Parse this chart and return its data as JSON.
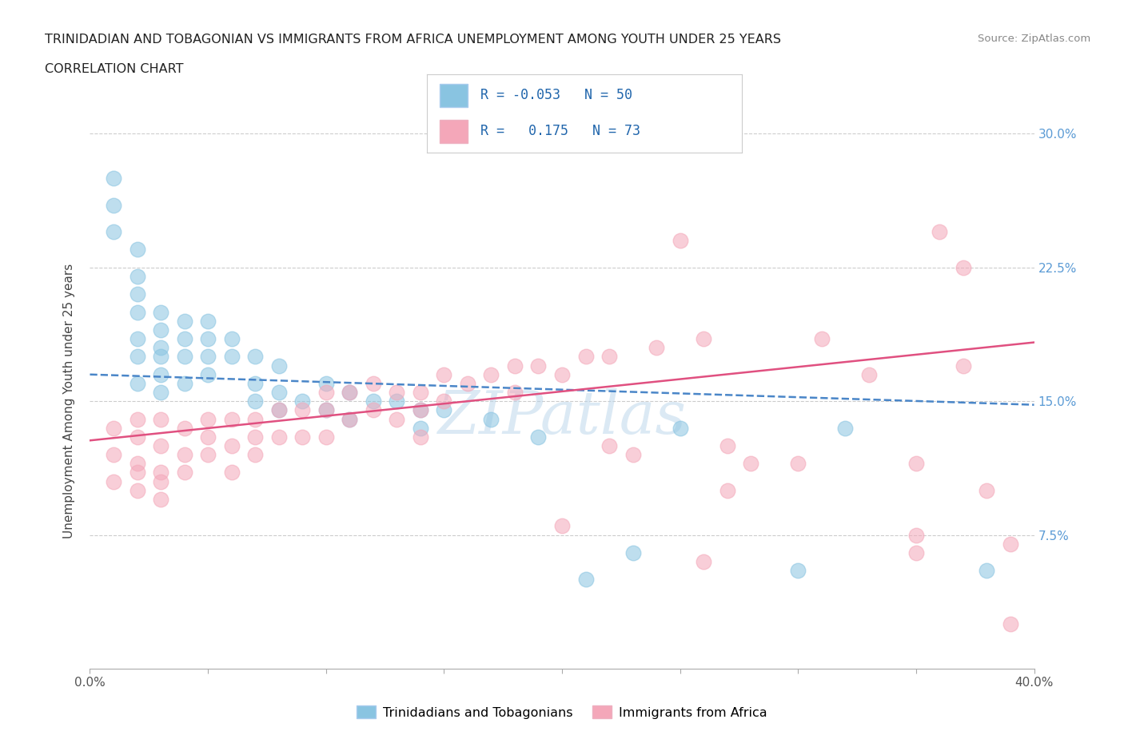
{
  "title_line1": "TRINIDADIAN AND TOBAGONIAN VS IMMIGRANTS FROM AFRICA UNEMPLOYMENT AMONG YOUTH UNDER 25 YEARS",
  "title_line2": "CORRELATION CHART",
  "source_text": "Source: ZipAtlas.com",
  "ylabel_label": "Unemployment Among Youth under 25 years",
  "xlim": [
    0.0,
    0.4
  ],
  "ylim": [
    0.0,
    0.3
  ],
  "yticks": [
    0.075,
    0.15,
    0.225,
    0.3
  ],
  "ytick_labels": [
    "7.5%",
    "15.0%",
    "22.5%",
    "30.0%"
  ],
  "xticks": [
    0.0,
    0.05,
    0.1,
    0.15,
    0.2,
    0.25,
    0.3,
    0.35,
    0.4
  ],
  "legend_R1": "-0.053",
  "legend_N1": "50",
  "legend_R2": "0.175",
  "legend_N2": "73",
  "legend_label1": "Trinidadians and Tobagonians",
  "legend_label2": "Immigrants from Africa",
  "color_blue": "#89c4e1",
  "color_pink": "#f4a7b9",
  "color_blue_line": "#4a86c8",
  "color_pink_line": "#e05080",
  "blue_trend_start_y": 0.165,
  "blue_trend_end_y": 0.148,
  "pink_trend_start_y": 0.128,
  "pink_trend_end_y": 0.183,
  "blue_x": [
    0.01,
    0.01,
    0.01,
    0.02,
    0.02,
    0.02,
    0.02,
    0.02,
    0.02,
    0.02,
    0.03,
    0.03,
    0.03,
    0.03,
    0.03,
    0.03,
    0.04,
    0.04,
    0.04,
    0.04,
    0.05,
    0.05,
    0.05,
    0.05,
    0.06,
    0.06,
    0.07,
    0.07,
    0.07,
    0.08,
    0.08,
    0.08,
    0.09,
    0.1,
    0.1,
    0.11,
    0.11,
    0.12,
    0.13,
    0.14,
    0.14,
    0.15,
    0.17,
    0.19,
    0.21,
    0.23,
    0.25,
    0.3,
    0.32,
    0.38
  ],
  "blue_y": [
    0.275,
    0.26,
    0.245,
    0.235,
    0.22,
    0.21,
    0.2,
    0.185,
    0.175,
    0.16,
    0.2,
    0.19,
    0.18,
    0.175,
    0.165,
    0.155,
    0.195,
    0.185,
    0.175,
    0.16,
    0.195,
    0.185,
    0.175,
    0.165,
    0.185,
    0.175,
    0.175,
    0.16,
    0.15,
    0.17,
    0.155,
    0.145,
    0.15,
    0.16,
    0.145,
    0.155,
    0.14,
    0.15,
    0.15,
    0.145,
    0.135,
    0.145,
    0.14,
    0.13,
    0.05,
    0.065,
    0.135,
    0.055,
    0.135,
    0.055
  ],
  "pink_x": [
    0.01,
    0.01,
    0.01,
    0.02,
    0.02,
    0.02,
    0.02,
    0.02,
    0.03,
    0.03,
    0.03,
    0.03,
    0.03,
    0.04,
    0.04,
    0.04,
    0.05,
    0.05,
    0.05,
    0.06,
    0.06,
    0.06,
    0.07,
    0.07,
    0.07,
    0.08,
    0.08,
    0.09,
    0.09,
    0.1,
    0.1,
    0.1,
    0.11,
    0.11,
    0.12,
    0.12,
    0.13,
    0.13,
    0.14,
    0.14,
    0.14,
    0.15,
    0.15,
    0.16,
    0.17,
    0.18,
    0.18,
    0.19,
    0.2,
    0.21,
    0.22,
    0.23,
    0.24,
    0.25,
    0.26,
    0.28,
    0.3,
    0.31,
    0.33,
    0.35,
    0.36,
    0.37,
    0.37,
    0.38,
    0.39,
    0.2,
    0.22,
    0.26,
    0.27,
    0.27,
    0.35,
    0.35,
    0.39
  ],
  "pink_y": [
    0.135,
    0.12,
    0.105,
    0.14,
    0.13,
    0.115,
    0.11,
    0.1,
    0.14,
    0.125,
    0.11,
    0.105,
    0.095,
    0.135,
    0.12,
    0.11,
    0.14,
    0.13,
    0.12,
    0.14,
    0.125,
    0.11,
    0.14,
    0.13,
    0.12,
    0.145,
    0.13,
    0.145,
    0.13,
    0.155,
    0.145,
    0.13,
    0.155,
    0.14,
    0.16,
    0.145,
    0.155,
    0.14,
    0.155,
    0.145,
    0.13,
    0.165,
    0.15,
    0.16,
    0.165,
    0.17,
    0.155,
    0.17,
    0.165,
    0.175,
    0.175,
    0.12,
    0.18,
    0.24,
    0.185,
    0.115,
    0.115,
    0.185,
    0.165,
    0.115,
    0.245,
    0.225,
    0.17,
    0.1,
    0.07,
    0.08,
    0.125,
    0.06,
    0.1,
    0.125,
    0.075,
    0.065,
    0.025
  ]
}
